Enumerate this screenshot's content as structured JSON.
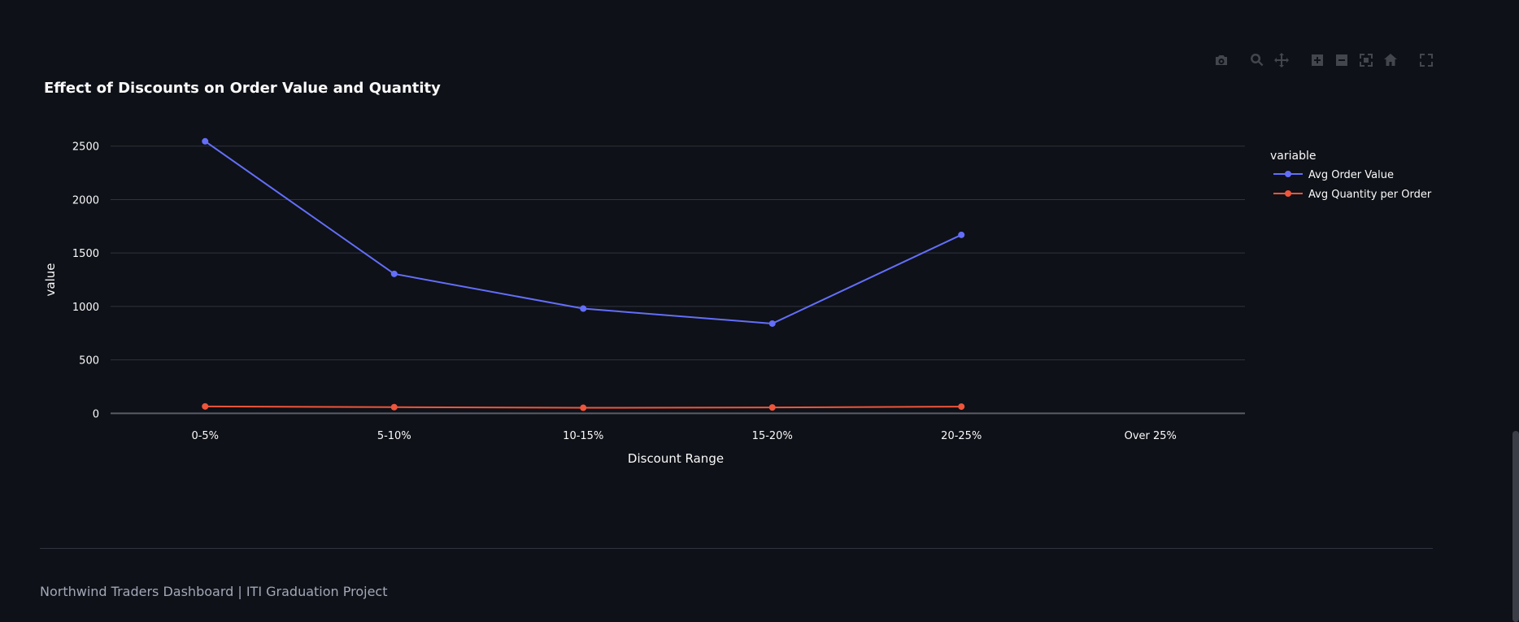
{
  "modebar": {
    "buttons": [
      {
        "name": "camera-icon"
      },
      {
        "name": "zoom-icon"
      },
      {
        "name": "pan-icon"
      },
      {
        "name": "zoom-in-icon"
      },
      {
        "name": "zoom-out-icon"
      },
      {
        "name": "autoscale-icon"
      },
      {
        "name": "home-icon"
      },
      {
        "name": "fullscreen-icon"
      }
    ]
  },
  "chart_data": {
    "type": "line",
    "title": "Effect of Discounts on Order Value and Quantity",
    "xlabel": "Discount Range",
    "ylabel": "value",
    "categories": [
      "0-5%",
      "5-10%",
      "10-15%",
      "15-20%",
      "20-25%",
      "Over 25%"
    ],
    "yticks": [
      0,
      500,
      1000,
      1500,
      2000,
      2500
    ],
    "ylim": [
      -20,
      2650
    ],
    "grid": true,
    "legend_title": "variable",
    "legend_position": "right",
    "series": [
      {
        "name": "Avg Order Value",
        "color": "#636efa",
        "values": [
          2545,
          1305,
          980,
          840,
          1670,
          null
        ]
      },
      {
        "name": "Avg Quantity per Order",
        "color": "#ef553b",
        "values": [
          65,
          58,
          52,
          55,
          63,
          null
        ]
      }
    ]
  },
  "footer": {
    "text": "Northwind Traders Dashboard | ITI Graduation Project"
  }
}
